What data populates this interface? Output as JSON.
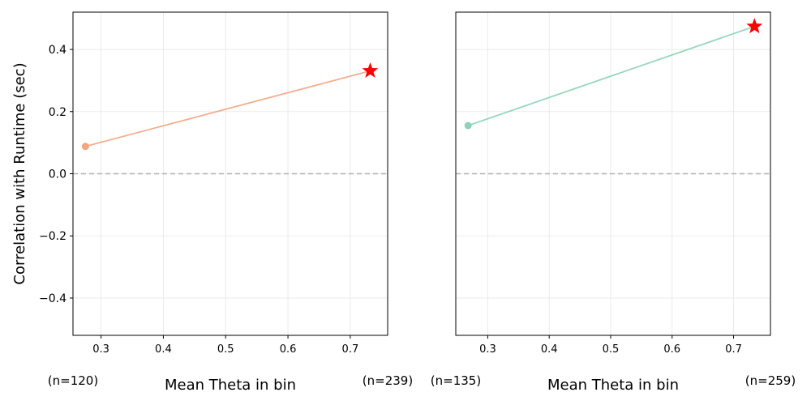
{
  "chart_data": [
    {
      "type": "line",
      "title": "",
      "xlabel": "Mean Theta in bin",
      "ylabel": "Correlation with Runtime (sec)",
      "xlim": [
        0.255,
        0.76
      ],
      "ylim": [
        -0.52,
        0.52
      ],
      "xticks": [
        0.3,
        0.4,
        0.5,
        0.6,
        0.7
      ],
      "xtick_labels": [
        "0.3",
        "0.4",
        "0.5",
        "0.6",
        "0.7"
      ],
      "yticks": [
        -0.4,
        -0.2,
        0.0,
        0.2,
        0.4
      ],
      "ytick_labels": [
        "−0.4",
        "−0.2",
        "0.0",
        "0.2",
        "0.4"
      ],
      "grid": true,
      "reference_line_y": 0.0,
      "color": "#f4a582",
      "highlight_color": "#ff0000",
      "series": [
        {
          "x": [
            0.275,
            0.732
          ],
          "y": [
            0.088,
            0.331
          ],
          "markers": [
            "circle",
            "star"
          ]
        }
      ],
      "bin_counts": [
        "(n=120)",
        "(n=239)"
      ]
    },
    {
      "type": "line",
      "title": "",
      "xlabel": "Mean Theta in bin",
      "ylabel": "",
      "xlim": [
        0.248,
        0.76
      ],
      "ylim": [
        -0.52,
        0.52
      ],
      "xticks": [
        0.3,
        0.4,
        0.5,
        0.6,
        0.7
      ],
      "xtick_labels": [
        "0.3",
        "0.4",
        "0.5",
        "0.6",
        "0.7"
      ],
      "yticks": [],
      "ytick_labels": [],
      "grid": true,
      "reference_line_y": 0.0,
      "color": "#8dd3b8",
      "highlight_color": "#ff0000",
      "series": [
        {
          "x": [
            0.268,
            0.734
          ],
          "y": [
            0.155,
            0.474
          ],
          "markers": [
            "circle",
            "star"
          ]
        }
      ],
      "bin_counts": [
        "(n=135)",
        "(n=259)"
      ]
    }
  ]
}
